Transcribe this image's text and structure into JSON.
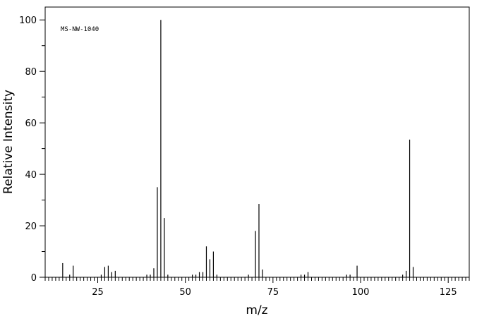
{
  "chart_data": {
    "type": "bar",
    "annotation": "MS-NW-1040",
    "xlabel": "m/z",
    "ylabel": "Relative Intensity",
    "xlim": [
      10,
      131
    ],
    "ylim": [
      0,
      105
    ],
    "x_ticks": [
      25,
      50,
      75,
      100,
      125
    ],
    "y_ticks": [
      0,
      20,
      40,
      60,
      80,
      100
    ],
    "peaks": [
      {
        "x": 15,
        "y": 5.5
      },
      {
        "x": 17,
        "y": 1
      },
      {
        "x": 18,
        "y": 4.5
      },
      {
        "x": 26,
        "y": 1
      },
      {
        "x": 27,
        "y": 4
      },
      {
        "x": 28,
        "y": 4.5
      },
      {
        "x": 29,
        "y": 2
      },
      {
        "x": 30,
        "y": 2.5
      },
      {
        "x": 39,
        "y": 1
      },
      {
        "x": 40,
        "y": 1
      },
      {
        "x": 41,
        "y": 3.5
      },
      {
        "x": 42,
        "y": 35
      },
      {
        "x": 43,
        "y": 100
      },
      {
        "x": 44,
        "y": 23
      },
      {
        "x": 45,
        "y": 1
      },
      {
        "x": 52,
        "y": 1
      },
      {
        "x": 53,
        "y": 1
      },
      {
        "x": 54,
        "y": 2
      },
      {
        "x": 55,
        "y": 2
      },
      {
        "x": 56,
        "y": 12
      },
      {
        "x": 57,
        "y": 7
      },
      {
        "x": 58,
        "y": 10
      },
      {
        "x": 59,
        "y": 1
      },
      {
        "x": 68,
        "y": 1
      },
      {
        "x": 70,
        "y": 18
      },
      {
        "x": 71,
        "y": 28.5
      },
      {
        "x": 72,
        "y": 3
      },
      {
        "x": 83,
        "y": 1
      },
      {
        "x": 84,
        "y": 1
      },
      {
        "x": 85,
        "y": 2
      },
      {
        "x": 96,
        "y": 1
      },
      {
        "x": 97,
        "y": 1
      },
      {
        "x": 99,
        "y": 4.5
      },
      {
        "x": 112,
        "y": 1
      },
      {
        "x": 113,
        "y": 2.5
      },
      {
        "x": 114,
        "y": 53.5
      },
      {
        "x": 115,
        "y": 4
      }
    ]
  }
}
